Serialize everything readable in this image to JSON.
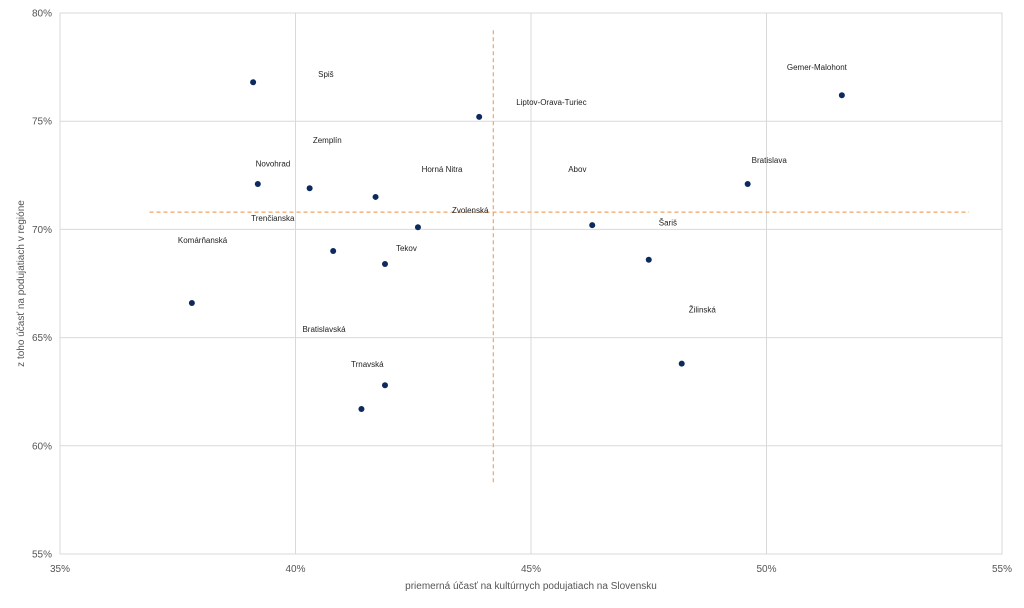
{
  "chart_data": {
    "type": "scatter",
    "xlabel": "priemerná účasť na kultúrnych podujatiach na Slovensku",
    "ylabel": "z toho účasť na podujatiach v regióne",
    "xlim": [
      0.35,
      0.55
    ],
    "ylim": [
      0.55,
      0.8
    ],
    "x_ticks": [
      0.35,
      0.4,
      0.45,
      0.5,
      0.55
    ],
    "x_tick_labels": [
      "35%",
      "40%",
      "45%",
      "50%",
      "55%"
    ],
    "y_ticks": [
      0.55,
      0.6,
      0.65,
      0.7,
      0.75,
      0.8
    ],
    "y_tick_labels": [
      "55%",
      "60%",
      "65%",
      "70%",
      "75%",
      "80%"
    ],
    "grid": true,
    "marker_color": "#0d2a5e",
    "reference_line_color": "#f4a460",
    "reference_lines": {
      "vertical_x": 0.442,
      "horizontal_y": 0.708
    },
    "points": [
      {
        "label": "Spiš",
        "x": 0.391,
        "y": 0.768
      },
      {
        "label": "Gemer-Malohont",
        "x": 0.516,
        "y": 0.762
      },
      {
        "label": "Liptov-Orava-Turiec",
        "x": 0.439,
        "y": 0.752
      },
      {
        "label": "Zemplín",
        "x": 0.392,
        "y": 0.721
      },
      {
        "label": "Novohrad",
        "x": 0.403,
        "y": 0.719
      },
      {
        "label": "Horná Nitra",
        "x": 0.417,
        "y": 0.715
      },
      {
        "label": "Bratislava",
        "x": 0.496,
        "y": 0.721
      },
      {
        "label": "Abov",
        "x": 0.463,
        "y": 0.702
      },
      {
        "label": "Zvolenská",
        "x": 0.426,
        "y": 0.701
      },
      {
        "label": "Trenčianska",
        "x": 0.408,
        "y": 0.69
      },
      {
        "label": "Tekov",
        "x": 0.419,
        "y": 0.684
      },
      {
        "label": "Šariš",
        "x": 0.475,
        "y": 0.686
      },
      {
        "label": "Komárňanská",
        "x": 0.378,
        "y": 0.666
      },
      {
        "label": "Žilinská",
        "x": 0.482,
        "y": 0.638
      },
      {
        "label": "Trnavská",
        "x": 0.419,
        "y": 0.628
      },
      {
        "label": "Bratislavská",
        "x": 0.414,
        "y": 0.617
      }
    ]
  }
}
